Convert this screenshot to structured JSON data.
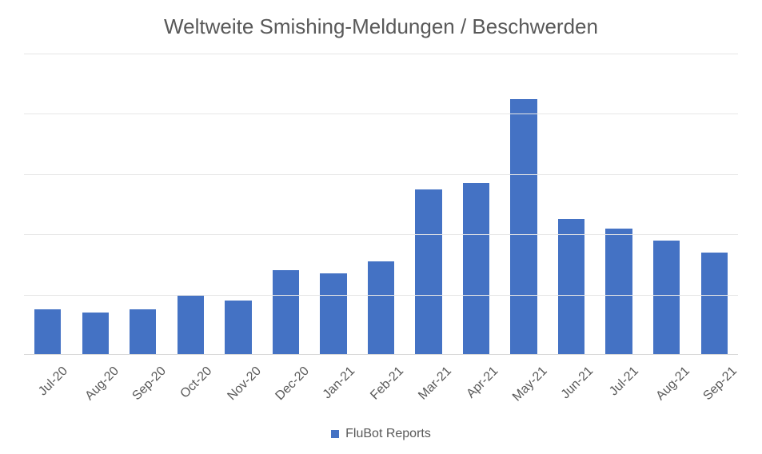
{
  "chart": {
    "type": "bar",
    "title": "Weltweite Smishing-Meldungen / Beschwerden",
    "title_fontsize": 26,
    "title_color": "#595959",
    "background_color": "#ffffff",
    "grid_color": "#e6e6e6",
    "baseline_color": "#d9d9d9",
    "text_color": "#595959",
    "label_fontsize": 16,
    "ylim": [
      0,
      100
    ],
    "ytick_step": 20,
    "gridlines": [
      20,
      40,
      60,
      80,
      100
    ],
    "bar_color": "#4472c4",
    "bar_width_percent": 56,
    "categories": [
      "Jul-20",
      "Aug-20",
      "Sep-20",
      "Oct-20",
      "Nov-20",
      "Dec-20",
      "Jan-21",
      "Feb-21",
      "Mar-21",
      "Apr-21",
      "May-21",
      "Jun-21",
      "Jul-21",
      "Aug-21",
      "Sep-21"
    ],
    "values": [
      15,
      14,
      15,
      20,
      18,
      28,
      27,
      31,
      55,
      57,
      85,
      45,
      42,
      38,
      34
    ],
    "legend": {
      "label": "FluBot Reports",
      "swatch_color": "#4472c4",
      "fontsize": 16
    }
  }
}
